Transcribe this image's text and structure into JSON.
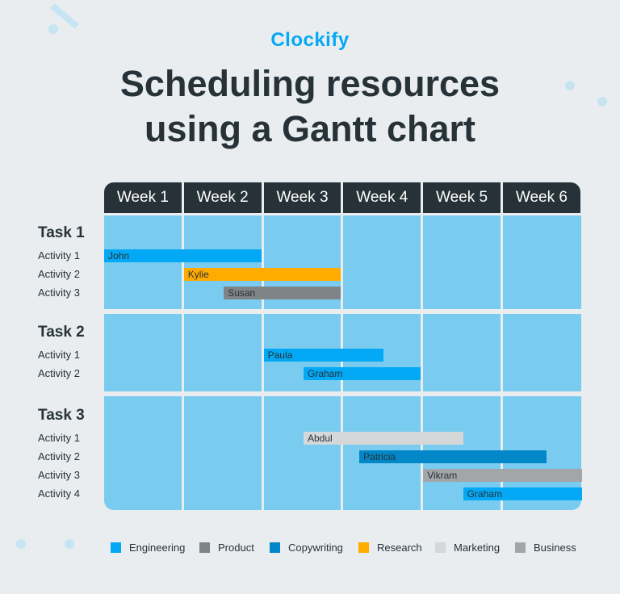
{
  "logo": "Clockify",
  "title": [
    "Scheduling resources",
    "using a Gantt chart"
  ],
  "chart_data": {
    "type": "gantt",
    "columns": [
      "Week 1",
      "Week 2",
      "Week 3",
      "Week 4",
      "Week 5",
      "Week 6"
    ],
    "x_unit": "weeks",
    "xlim": [
      0,
      6
    ],
    "colors": {
      "Engineering": "#03a9f4",
      "Product": "#7f8487",
      "Copywriting": "#0288c8",
      "Research": "#ffab00",
      "Marketing": "#d5d7d9",
      "Business": "#a3a5a8"
    },
    "legend": [
      "Engineering",
      "Product",
      "Copywriting",
      "Research",
      "Marketing",
      "Business"
    ],
    "legend_position": "bottom",
    "tasks": [
      {
        "name": "Task 1",
        "activities": [
          {
            "label": "Activity 1",
            "person": "John",
            "category": "Engineering",
            "start": 0,
            "end": 2
          },
          {
            "label": "Activity 2",
            "person": "Kylie",
            "category": "Research",
            "start": 1,
            "end": 3
          },
          {
            "label": "Activity 3",
            "person": "Susan",
            "category": "Product",
            "start": 1.5,
            "end": 3
          }
        ]
      },
      {
        "name": "Task 2",
        "activities": [
          {
            "label": "Activity 1",
            "person": "Paula",
            "category": "Engineering",
            "start": 2,
            "end": 3.5
          },
          {
            "label": "Activity 2",
            "person": "Graham",
            "category": "Engineering",
            "start": 2.5,
            "end": 4
          }
        ]
      },
      {
        "name": "Task 3",
        "activities": [
          {
            "label": "Activity 1",
            "person": "Abdul",
            "category": "Marketing",
            "start": 2.5,
            "end": 4.5
          },
          {
            "label": "Activity 2",
            "person": "Patricia",
            "category": "Copywriting",
            "start": 3.2,
            "end": 5.55
          },
          {
            "label": "Activity 3",
            "person": "Vikram",
            "category": "Business",
            "start": 4,
            "end": 6
          },
          {
            "label": "Activity 4",
            "person": "Graham",
            "category": "Engineering",
            "start": 4.5,
            "end": 6
          }
        ]
      }
    ]
  }
}
